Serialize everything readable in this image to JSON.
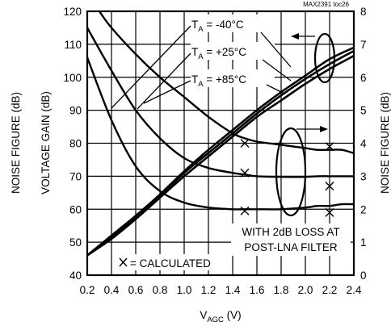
{
  "chart_data": {
    "type": "line",
    "code_label": "MAX2391 toc26",
    "xlabel": "V",
    "xlabel_sub": "AGC",
    "xlabel_unit": " (V)",
    "ylabel_left_outer": "NOISE FIGURE (dB)",
    "ylabel_left_inner": "VOLTAGE GAIN (dB)",
    "ylabel_right": "NOISE FIGURE (dB)",
    "x_ticks": [
      "0.2",
      "0.4",
      "0.6",
      "0.8",
      "1.0",
      "1.2",
      "1.4",
      "1.6",
      "1.8",
      "2.0",
      "2.2",
      "2.4"
    ],
    "y_left_ticks": [
      "40",
      "50",
      "60",
      "70",
      "80",
      "90",
      "100",
      "110",
      "120"
    ],
    "y_right_ticks": [
      "0",
      "1",
      "2",
      "3",
      "4",
      "5",
      "6",
      "7",
      "8"
    ],
    "xlim": [
      0.2,
      2.4
    ],
    "ylim_left": [
      40,
      120
    ],
    "ylim_right": [
      0,
      8
    ],
    "grid": true,
    "annotations": {
      "temp_labels": [
        {
          "prefix": "T",
          "sub": "A",
          "value": " = -40°C"
        },
        {
          "prefix": "T",
          "sub": "A",
          "value": " = +25°C"
        },
        {
          "prefix": "T",
          "sub": "A",
          "value": " = +85°C"
        }
      ],
      "loss_note_line1": "WITH 2dB LOSS AT",
      "loss_note_line2": "POST-LNA FILTER",
      "calculated_legend": "= CALCULATED"
    },
    "gain_series": [
      {
        "x": [
          0.2,
          0.4,
          0.6,
          0.8,
          1.0,
          1.2,
          1.4,
          1.6,
          1.8,
          2.0,
          2.2,
          2.4
        ],
        "y": [
          46,
          52,
          58,
          64.5,
          71.5,
          78,
          84,
          90,
          95.5,
          100.5,
          105.5,
          109
        ]
      },
      {
        "x": [
          0.2,
          0.4,
          0.6,
          0.8,
          1.0,
          1.2,
          1.4,
          1.6,
          1.8,
          2.0,
          2.2,
          2.4
        ],
        "y": [
          46,
          51.5,
          57.5,
          64,
          71,
          77,
          83,
          89,
          94.5,
          99.5,
          104,
          108
        ]
      },
      {
        "x": [
          0.2,
          0.4,
          0.6,
          0.8,
          1.0,
          1.2,
          1.4,
          1.6,
          1.8,
          2.0,
          2.2,
          2.4
        ],
        "y": [
          46,
          51,
          57,
          63.5,
          70,
          76,
          82,
          88,
          93,
          98,
          102.5,
          106.5
        ]
      }
    ],
    "nf_series": [
      {
        "x": [
          0.3,
          0.4,
          0.6,
          0.8,
          1.0,
          1.2,
          1.4,
          1.5,
          1.6,
          1.8,
          2.0,
          2.1,
          2.2,
          2.3,
          2.4
        ],
        "y": [
          8.0,
          7.5,
          6.7,
          6.0,
          5.4,
          4.8,
          4.3,
          4.15,
          4.05,
          3.95,
          3.85,
          3.8,
          3.8,
          3.8,
          3.7
        ]
      },
      {
        "x": [
          0.2,
          0.4,
          0.6,
          0.8,
          1.0,
          1.2,
          1.4,
          1.5,
          1.6,
          1.8,
          2.0,
          2.1,
          2.2,
          2.3,
          2.4
        ],
        "y": [
          7.5,
          6.2,
          5.0,
          4.15,
          3.55,
          3.25,
          3.1,
          3.05,
          3.0,
          2.98,
          2.98,
          3.0,
          3.0,
          3.0,
          3.0
        ]
      },
      {
        "x": [
          0.2,
          0.4,
          0.6,
          0.8,
          1.0,
          1.2,
          1.4,
          1.5,
          1.6,
          1.8,
          2.0,
          2.1,
          2.2,
          2.3,
          2.4
        ],
        "y": [
          6.6,
          4.7,
          3.3,
          2.55,
          2.2,
          2.05,
          2.0,
          2.0,
          2.0,
          2.0,
          2.05,
          2.1,
          2.1,
          2.15,
          2.15
        ]
      }
    ],
    "calculated_points": [
      {
        "x": 1.5,
        "y": 80
      },
      {
        "x": 1.5,
        "y": 71
      },
      {
        "x": 1.5,
        "y": 59.5
      },
      {
        "x": 2.2,
        "y": 79
      },
      {
        "x": 2.2,
        "y": 67
      },
      {
        "x": 2.2,
        "y": 59
      }
    ]
  }
}
